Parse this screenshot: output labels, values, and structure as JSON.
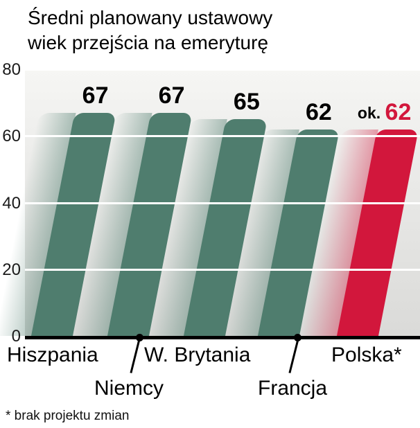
{
  "chart_data": {
    "type": "bar",
    "title": "Średni planowany ustawowy wiek przejścia na emeryturę",
    "title_lines": [
      "Średni planowany ustawowy",
      "wiek przejścia na emeryturę"
    ],
    "categories": [
      "Hiszpania",
      "Niemcy",
      "W. Brytania",
      "Francja",
      "Polska*"
    ],
    "values": [
      67,
      67,
      65,
      62,
      62
    ],
    "ylim": [
      0,
      80
    ],
    "yticks": [
      "80",
      "60",
      "40",
      "20",
      "0"
    ],
    "grid": true,
    "legend": false,
    "footnote": "* brak projektu zmian",
    "colors": {
      "bar_teal": "#4f7d6e",
      "bar_red": "#d2173c",
      "grid_white": "#ffffff",
      "axis_black": "#000000"
    },
    "bars": [
      {
        "label": "Hiszpania",
        "value": 67,
        "display": "67",
        "prefix": "",
        "color": "#4f7d6e",
        "trail_from": "rgba(79,125,110,0)",
        "trail_to": "rgba(79,125,110,0.45)",
        "num_color": "#000000"
      },
      {
        "label": "Niemcy",
        "value": 67,
        "display": "67",
        "prefix": "",
        "color": "#4f7d6e",
        "trail_from": "rgba(79,125,110,0)",
        "trail_to": "rgba(79,125,110,0.45)",
        "num_color": "#000000"
      },
      {
        "label": "W. Brytania",
        "value": 65,
        "display": "65",
        "prefix": "",
        "color": "#4f7d6e",
        "trail_from": "rgba(79,125,110,0)",
        "trail_to": "rgba(79,125,110,0.45)",
        "num_color": "#000000"
      },
      {
        "label": "Francja",
        "value": 62,
        "display": "62",
        "prefix": "",
        "color": "#4f7d6e",
        "trail_from": "rgba(79,125,110,0)",
        "trail_to": "rgba(79,125,110,0.45)",
        "num_color": "#000000"
      },
      {
        "label": "Polska*",
        "value": 62,
        "display": "62",
        "prefix": "ok. ",
        "color": "#d2173c",
        "trail_from": "rgba(210,23,60,0)",
        "trail_to": "rgba(210,23,60,0.40)",
        "num_color": "#d2173c"
      }
    ]
  }
}
